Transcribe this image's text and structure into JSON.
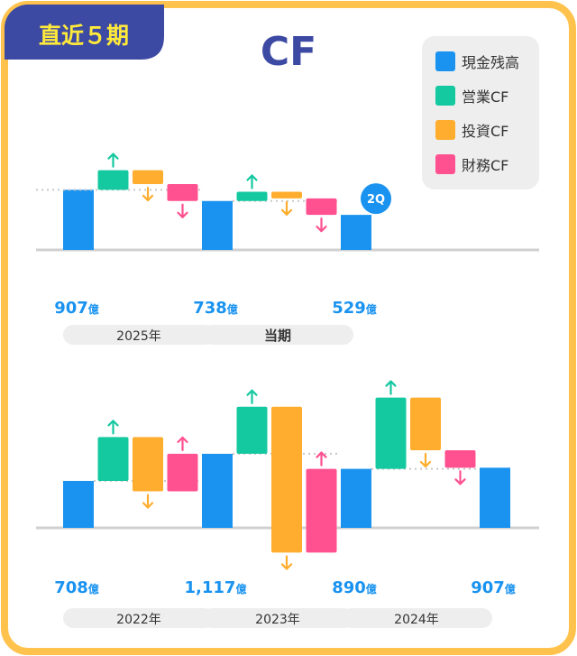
{
  "badge": {
    "label": "直近５期"
  },
  "title": "CF",
  "colors": {
    "cash": "#1a93f0",
    "operating": "#14c8a0",
    "investing": "#ffad2e",
    "financing": "#ff5090",
    "badge_bg": "#3d4aa3",
    "badge_text": "#ffe93a",
    "title_text": "#3d4aa3",
    "border": "#ffc34d",
    "legend_bg": "#eeeeee",
    "baseline": "#d0d0d0",
    "value_text": "#1a93f0",
    "period_text": "#333333",
    "period_bg": "#eeeeee"
  },
  "legend": [
    {
      "label": "現金残高",
      "key": "cash"
    },
    {
      "label": "営業CF",
      "key": "operating"
    },
    {
      "label": "投資CF",
      "key": "investing"
    },
    {
      "label": "財務CF",
      "key": "financing"
    }
  ],
  "chart_data": [
    {
      "type": "waterfall",
      "title": "CF",
      "unit": "億",
      "categories": [
        "2025年",
        "当期"
      ],
      "opening_cash": 907,
      "periods": [
        {
          "label": "2025年",
          "operating": 295,
          "investing": -208,
          "financing": -256,
          "ending_cash": 738
        },
        {
          "label": "当期",
          "operating": 140,
          "investing": -100,
          "financing": -249,
          "ending_cash": 529,
          "tag": "2Q"
        }
      ],
      "value_labels": [
        {
          "number": "907",
          "unit": "億"
        },
        {
          "number": "738",
          "unit": "億"
        },
        {
          "number": "529",
          "unit": "億"
        }
      ],
      "ylim": [
        0,
        1100
      ]
    },
    {
      "type": "waterfall",
      "title": "CF",
      "unit": "億",
      "categories": [
        "2022年",
        "2023年",
        "2024年"
      ],
      "opening_cash": 708,
      "periods": [
        {
          "label": "2022年",
          "operating": 661,
          "investing": -818,
          "financing": 566,
          "ending_cash": 1117
        },
        {
          "label": "2023年",
          "operating": 710,
          "investing": -2200,
          "financing": 1263,
          "ending_cash": 890
        },
        {
          "label": "2024年",
          "operating": 1075,
          "investing": -795,
          "financing": -263,
          "ending_cash": 907
        }
      ],
      "value_labels": [
        {
          "number": "708",
          "unit": "億"
        },
        {
          "number": "1,117",
          "unit": "億"
        },
        {
          "number": "890",
          "unit": "億"
        },
        {
          "number": "907",
          "unit": "億"
        }
      ],
      "ylim": [
        -560,
        1600
      ]
    }
  ]
}
